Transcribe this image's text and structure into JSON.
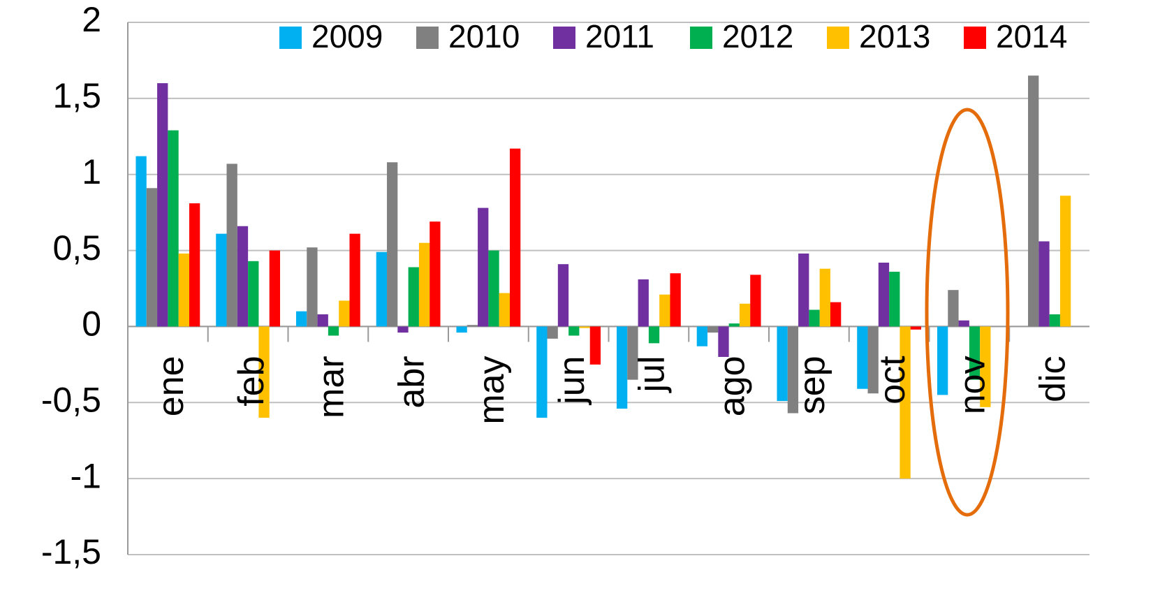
{
  "chart_data": {
    "type": "bar",
    "categories": [
      "ene",
      "feb",
      "mar",
      "abr",
      "may",
      "jun",
      "jul",
      "ago",
      "sep",
      "oct",
      "nov",
      "dic"
    ],
    "series": [
      {
        "name": "2009",
        "color": "#00b0f0",
        "values": [
          1.12,
          0.61,
          0.1,
          0.49,
          -0.04,
          -0.6,
          -0.54,
          -0.13,
          -0.49,
          -0.41,
          -0.45,
          null
        ]
      },
      {
        "name": "2010",
        "color": "#808080",
        "values": [
          0.91,
          1.07,
          0.52,
          1.08,
          0.01,
          -0.08,
          -0.35,
          -0.04,
          -0.57,
          -0.44,
          0.24,
          1.65
        ]
      },
      {
        "name": "2011",
        "color": "#7030a0",
        "values": [
          1.6,
          0.66,
          0.08,
          -0.04,
          0.78,
          0.41,
          0.31,
          -0.2,
          0.48,
          0.42,
          0.04,
          0.56
        ]
      },
      {
        "name": "2012",
        "color": "#00b050",
        "values": [
          1.29,
          0.43,
          -0.06,
          0.39,
          0.5,
          -0.06,
          -0.11,
          0.02,
          0.11,
          0.36,
          -0.35,
          0.08
        ]
      },
      {
        "name": "2013",
        "color": "#ffc000",
        "values": [
          0.48,
          -0.6,
          0.17,
          0.55,
          0.22,
          -0.01,
          0.21,
          0.15,
          0.38,
          -1.0,
          -0.53,
          0.86
        ]
      },
      {
        "name": "2014",
        "color": "#ff0000",
        "values": [
          0.81,
          0.5,
          0.61,
          0.69,
          1.17,
          -0.25,
          0.35,
          0.34,
          0.16,
          -0.02,
          null,
          null
        ]
      }
    ],
    "ylim": [
      -1.5,
      2
    ],
    "yticks": [
      {
        "value": -1.5,
        "label": "-1,5"
      },
      -1,
      {
        "value": -0.5,
        "label": "-0,5"
      },
      0,
      {
        "value": 0.5,
        "label": "0,5"
      },
      1,
      {
        "value": 1.5,
        "label": "1,5"
      },
      2
    ],
    "grid": true
  }
}
